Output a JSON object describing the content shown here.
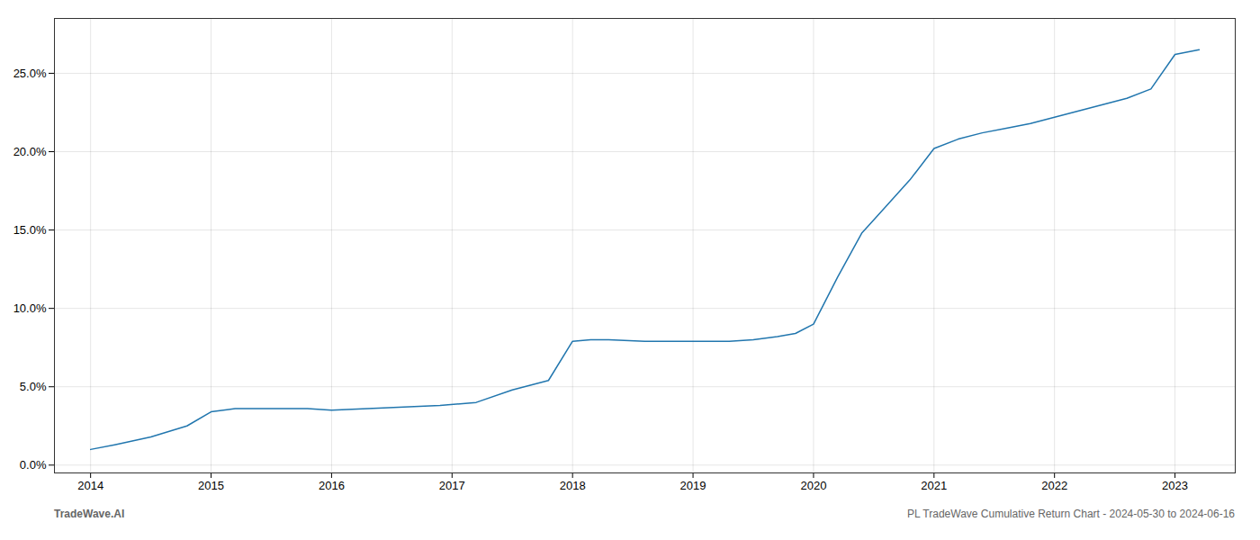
{
  "chart_data": {
    "type": "line",
    "x": [
      2014.0,
      2014.2,
      2014.5,
      2014.8,
      2015.0,
      2015.2,
      2015.5,
      2015.8,
      2016.0,
      2016.3,
      2016.6,
      2016.9,
      2017.2,
      2017.5,
      2017.8,
      2018.0,
      2018.15,
      2018.3,
      2018.6,
      2018.9,
      2019.0,
      2019.15,
      2019.3,
      2019.5,
      2019.7,
      2019.85,
      2020.0,
      2020.2,
      2020.4,
      2020.6,
      2020.8,
      2021.0,
      2021.2,
      2021.4,
      2021.6,
      2021.8,
      2022.0,
      2022.2,
      2022.4,
      2022.6,
      2022.8,
      2023.0,
      2023.2
    ],
    "values": [
      0.01,
      0.013,
      0.018,
      0.025,
      0.034,
      0.036,
      0.036,
      0.036,
      0.035,
      0.036,
      0.037,
      0.038,
      0.04,
      0.048,
      0.054,
      0.079,
      0.08,
      0.08,
      0.079,
      0.079,
      0.079,
      0.079,
      0.079,
      0.08,
      0.082,
      0.084,
      0.09,
      0.12,
      0.148,
      0.165,
      0.182,
      0.202,
      0.208,
      0.212,
      0.215,
      0.218,
      0.222,
      0.226,
      0.23,
      0.234,
      0.24,
      0.262,
      0.265
    ],
    "color": "#2176ae",
    "xlim": [
      2013.7,
      2023.5
    ],
    "xticks": [
      2014,
      2015,
      2016,
      2017,
      2018,
      2019,
      2020,
      2021,
      2022,
      2023
    ],
    "ylim": [
      -0.005,
      0.285
    ],
    "yticks": [
      {
        "value": 0.0,
        "label": "0.0%"
      },
      {
        "value": 0.05,
        "label": "5.0%"
      },
      {
        "value": 0.1,
        "label": "10.0%"
      },
      {
        "value": 0.15,
        "label": "15.0%"
      },
      {
        "value": 0.2,
        "label": "20.0%"
      },
      {
        "value": 0.25,
        "label": "25.0%"
      }
    ],
    "grid": true,
    "annotations": [
      "TradeWave.AI",
      "PL TradeWave Cumulative Return Chart - 2024-05-30 to 2024-06-16"
    ]
  }
}
